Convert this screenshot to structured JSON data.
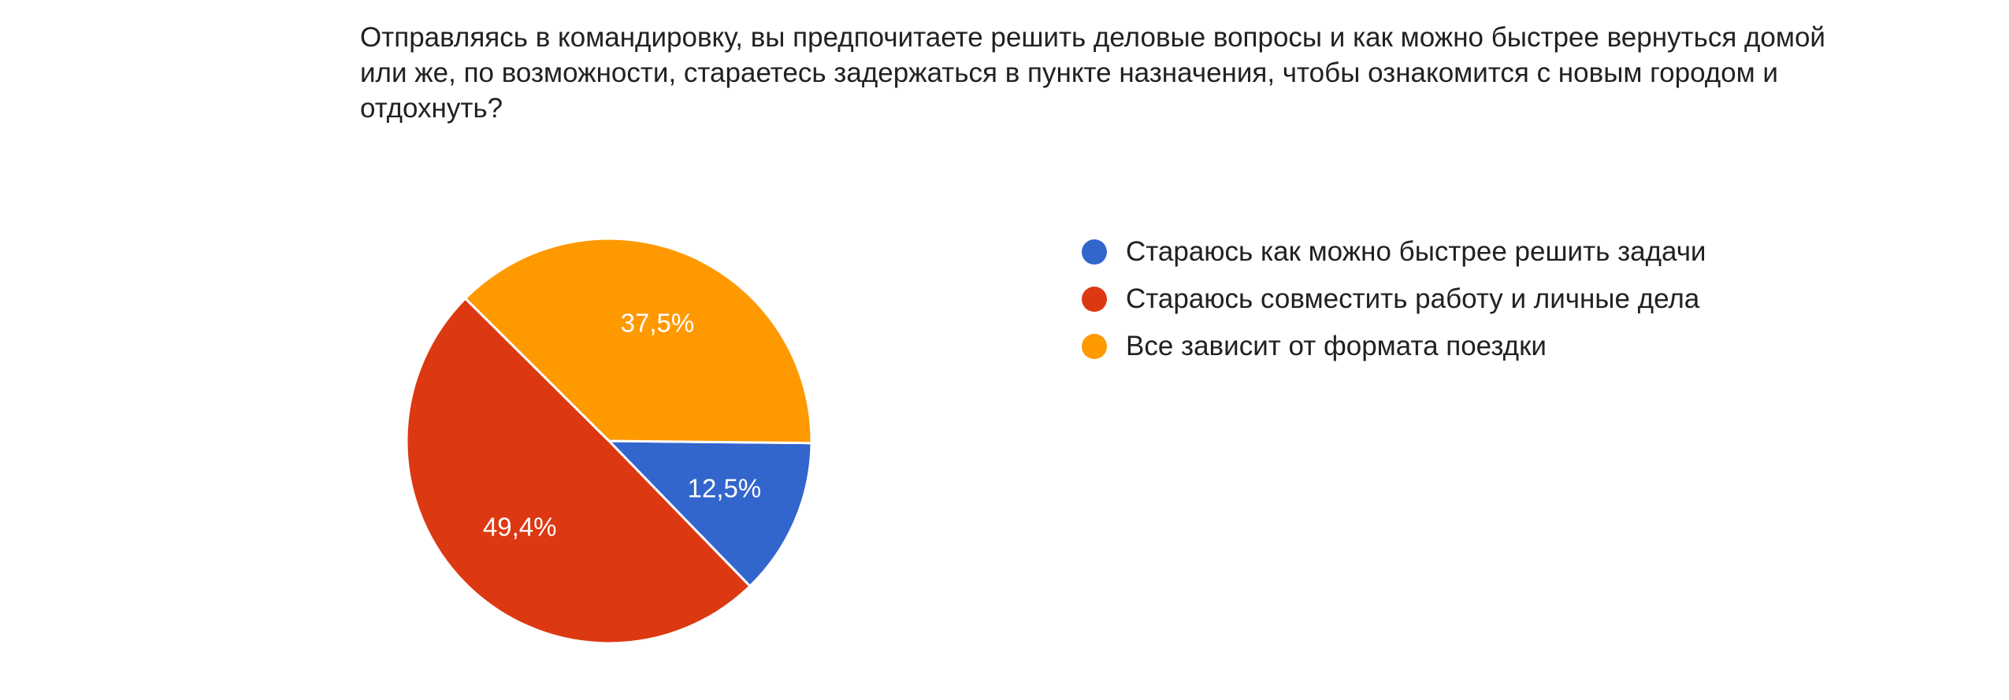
{
  "question": {
    "text": "Отправляясь в командировку, вы предпочитаете решить деловые вопросы и как можно быстрее вернуться домой или же, по возможности, стараетесь задержаться в пункте назначения, чтобы ознакомится с новым городом и отдохнуть?"
  },
  "chart_data": {
    "type": "pie",
    "title": "",
    "legend_position": "right",
    "slices": [
      {
        "label": "Стараюсь как можно быстрее решить задачи",
        "value": 12.5,
        "value_label": "12,5%",
        "color": "#3366cc"
      },
      {
        "label": "Стараюсь совместить работу и личные дела",
        "value": 49.4,
        "value_label": "49,4%",
        "color": "#dc3912"
      },
      {
        "label": "Все зависит от формата поездки",
        "value": 37.5,
        "value_label": "37,5%",
        "color": "#ff9900"
      }
    ]
  }
}
